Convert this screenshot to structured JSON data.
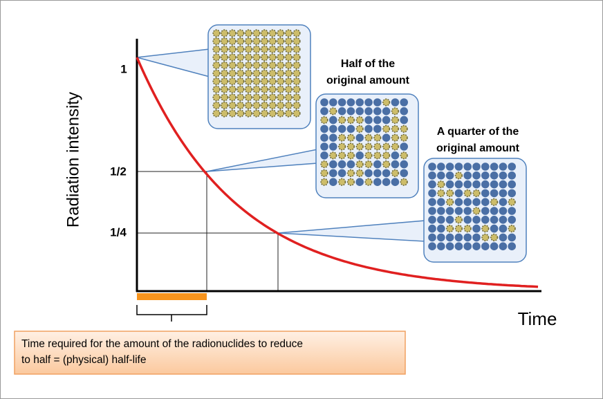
{
  "axes": {
    "y_label": "Radiation intensity",
    "x_label": "Time",
    "ticks": [
      "1",
      "1/2",
      "1/4"
    ]
  },
  "callouts": [
    {
      "lines": [
        "Half of the",
        "original amount"
      ]
    },
    {
      "lines": [
        "A quarter of the",
        "original amount"
      ]
    }
  ],
  "caption": {
    "lines": [
      "Time required for the amount of the radionuclides to reduce",
      "to half = (physical) half-life"
    ]
  }
}
